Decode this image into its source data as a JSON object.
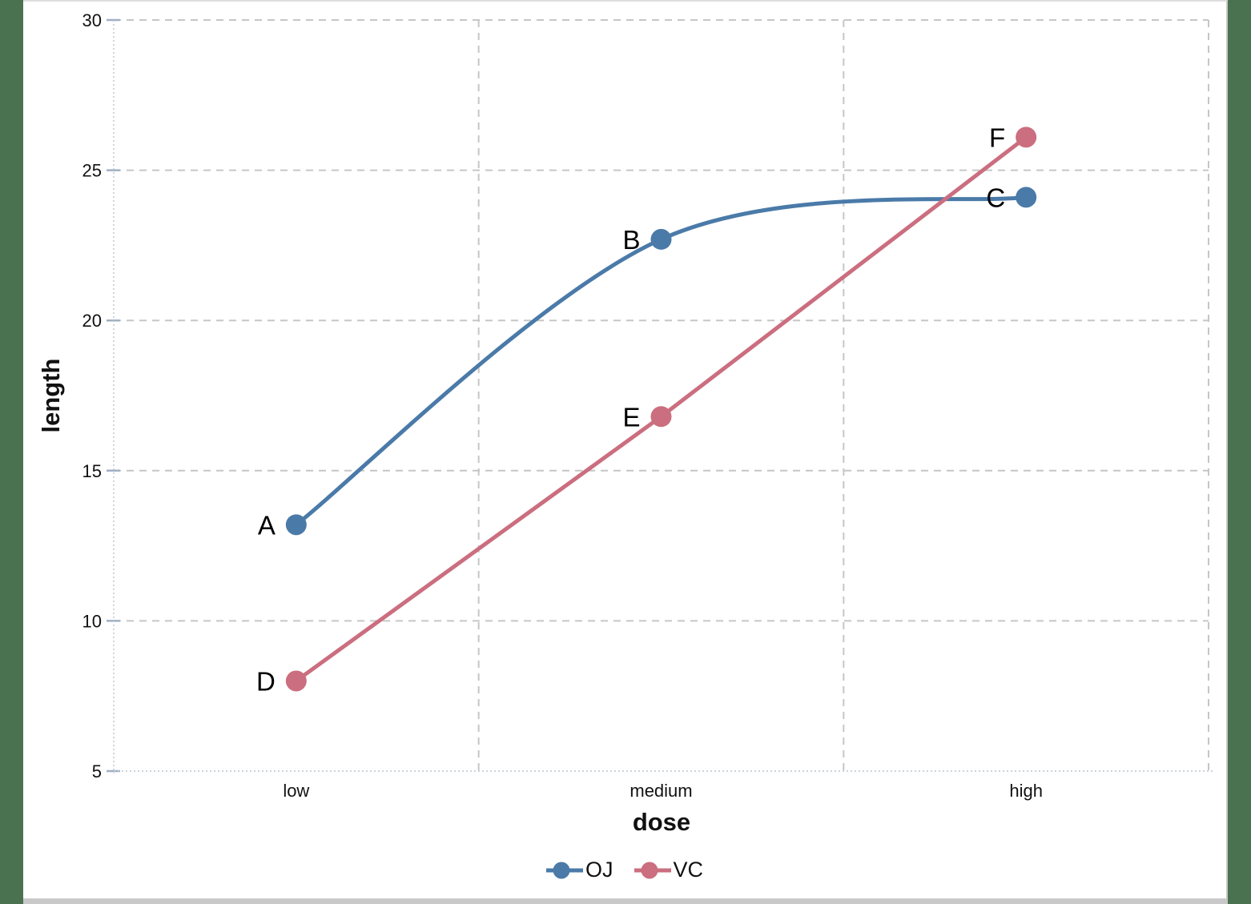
{
  "chart_data": {
    "type": "line",
    "categories": [
      "low",
      "medium",
      "high"
    ],
    "series": [
      {
        "name": "OJ",
        "color": "#4A7AA8",
        "smooth": true,
        "values": [
          13.2,
          22.7,
          24.1
        ],
        "point_labels": [
          "A",
          "B",
          "C"
        ]
      },
      {
        "name": "VC",
        "color": "#CB6E7F",
        "smooth": false,
        "values": [
          8.0,
          16.8,
          26.1
        ],
        "point_labels": [
          "D",
          "E",
          "F"
        ]
      }
    ],
    "xlabel": "dose",
    "ylabel": "length",
    "ylim": [
      5,
      30
    ],
    "yticks": [
      5,
      10,
      15,
      20,
      25,
      30
    ],
    "grid": "dashed",
    "legend_position": "bottom"
  },
  "colors": {
    "background": "#4A7250",
    "page": "#FFFFFF",
    "gridline": "#C6C6C6",
    "axis_line": "#BCC5CE",
    "tick_mark": "#9FB0C2",
    "text": "#111111",
    "point_label": "#000000",
    "bottom_bar": "#C9C9C9"
  }
}
